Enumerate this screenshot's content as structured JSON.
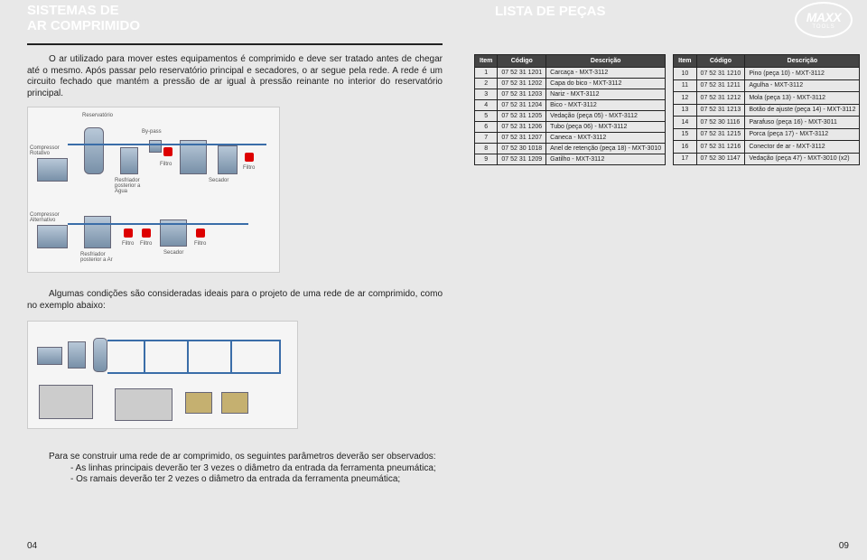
{
  "header": {
    "title_left_l1": "SISTEMAS DE",
    "title_left_l2": "AR COMPRIMIDO",
    "title_right": "LISTA DE PEÇAS",
    "logo_big": "MAXX",
    "logo_small": "TOOLS"
  },
  "paragraph1": "O ar utilizado para mover estes equipamentos é comprimido e deve ser tratado antes de chegar até o mesmo. Após passar pelo reservatório principal e secadores, o ar segue pela rede. A rede é um circuito fechado que mantém a pressão de ar igual à pressão reinante no interior do reservatório principal.",
  "paragraph2": "Algumas condições são consideradas ideais para o projeto de uma rede de ar comprimido, como no exemplo abaixo:",
  "paragraph3_intro": "Para se construir uma rede de ar comprimido, os seguintes parâmetros deverão ser observados:",
  "paragraph3_b1": "- As linhas principais deverão ter 3 vezes o diâmetro da entrada da ferramenta pneumática;",
  "paragraph3_b2": "- Os ramais deverão ter 2 vezes o diâmetro da entrada da ferramenta pneumática;",
  "page_left": "04",
  "page_right": "09",
  "diagram_labels": {
    "reservatorio": "Reservatório",
    "compressor_rot": "Compressor Rotativo",
    "resfriador": "Resfriador posterior a Água",
    "bypass": "By-pass",
    "filtro": "Filtro",
    "secador": "Secador",
    "compressor_alt": "Compressor Alternativo",
    "resfriador_ar": "Resfriador posterior a Ar"
  },
  "table": {
    "cols": [
      "Item",
      "Código",
      "Descrição"
    ],
    "left": [
      {
        "i": "1",
        "c": "07 52 31 1201",
        "d": "Carcaça - MXT-3112"
      },
      {
        "i": "2",
        "c": "07 52 31 1202",
        "d": "Capa do bico - MXT-3112"
      },
      {
        "i": "3",
        "c": "07 52 31 1203",
        "d": "Nariz - MXT-3112"
      },
      {
        "i": "4",
        "c": "07 52 31 1204",
        "d": "Bico - MXT-3112"
      },
      {
        "i": "5",
        "c": "07 52 31 1205",
        "d": "Vedação (peça 05) - MXT-3112"
      },
      {
        "i": "6",
        "c": "07 52 31 1206",
        "d": "Tubo (peça 06) - MXT-3112"
      },
      {
        "i": "7",
        "c": "07 52 31 1207",
        "d": "Caneca - MXT-3112"
      },
      {
        "i": "8",
        "c": "07 52 30 1018",
        "d": "Anel de retenção (peça 18) - MXT-3010"
      },
      {
        "i": "9",
        "c": "07 52 31 1209",
        "d": "Gatilho - MXT-3112"
      }
    ],
    "right": [
      {
        "i": "10",
        "c": "07 52 31 1210",
        "d": "Pino (peça 10) - MXT-3112"
      },
      {
        "i": "11",
        "c": "07 52 31 1211",
        "d": "Agulha - MXT-3112"
      },
      {
        "i": "12",
        "c": "07 52 31 1212",
        "d": "Mola (peça 13) - MXT-3112"
      },
      {
        "i": "13",
        "c": "07 52 31 1213",
        "d": "Botão de ajuste (peça 14) - MXT-3112"
      },
      {
        "i": "14",
        "c": "07 52 30 1116",
        "d": "Parafuso (peça 16) - MXT-3011"
      },
      {
        "i": "15",
        "c": "07 52 31 1215",
        "d": "Porca (peça 17) - MXT-3112"
      },
      {
        "i": "16",
        "c": "07 52 31 1216",
        "d": "Conector de ar - MXT-3112"
      },
      {
        "i": "17",
        "c": "07 52 30 1147",
        "d": "Vedação (peça 47) - MXT-3010 (x2)"
      }
    ]
  },
  "colors": {
    "bg": "#e8e8e8",
    "text": "#222222",
    "th_bg": "#444444",
    "th_fg": "#ffffff",
    "border": "#222222",
    "pipe": "#3a6da8"
  }
}
